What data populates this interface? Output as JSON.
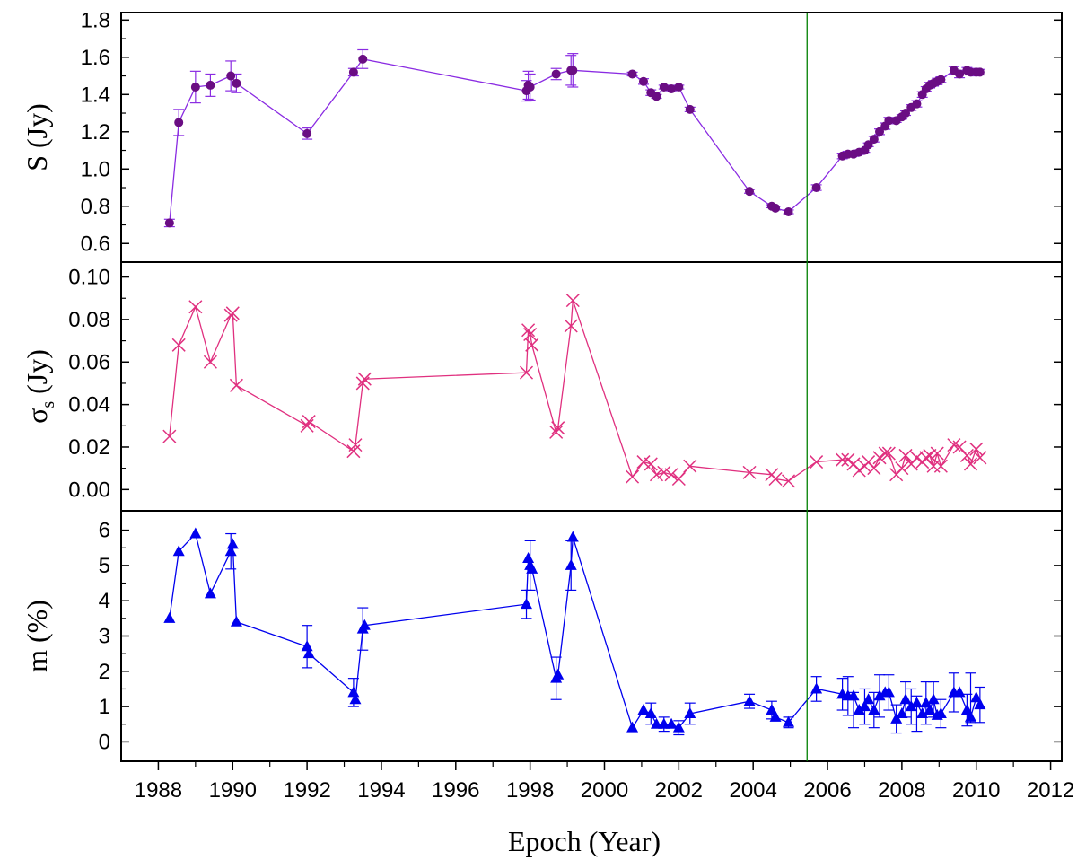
{
  "chart_data": {
    "type": "scatter",
    "x_range": [
      1987.0,
      2012.3
    ],
    "x_ticks": [
      1988,
      1990,
      1992,
      1994,
      1996,
      1998,
      2000,
      2002,
      2004,
      2006,
      2008,
      2010,
      2012
    ],
    "xlabel": "Epoch (Year)",
    "vertical_marker": {
      "x": 2005.45,
      "color": "#008000"
    },
    "panels": [
      {
        "name": "S",
        "ylabel": "S (Jy)",
        "ylim": [
          0.5,
          1.84
        ],
        "y_ticks": [
          "0.6",
          "0.8",
          "1.0",
          "1.2",
          "1.4",
          "1.6",
          "1.8"
        ],
        "marker": "circle",
        "marker_color": "#6a0d83",
        "line_color": "#8a2be2",
        "x": [
          1988.3,
          1988.55,
          1989.0,
          1989.4,
          1989.95,
          1990.1,
          1992.0,
          1993.25,
          1993.5,
          1997.9,
          1997.95,
          1998.0,
          1998.7,
          1999.1,
          1999.15,
          2000.75,
          2001.05,
          2001.25,
          2001.4,
          2001.6,
          2001.8,
          2002.0,
          2002.3,
          2003.9,
          2004.5,
          2004.6,
          2004.95,
          2005.7,
          2006.4,
          2006.55,
          2006.7,
          2006.85,
          2007.0,
          2007.1,
          2007.25,
          2007.4,
          2007.55,
          2007.65,
          2007.85,
          2008.0,
          2008.1,
          2008.25,
          2008.4,
          2008.55,
          2008.65,
          2008.75,
          2008.85,
          2008.95,
          2009.05,
          2009.4,
          2009.55,
          2009.75,
          2009.85,
          2010.0,
          2010.1
        ],
        "y": [
          0.71,
          1.25,
          1.44,
          1.45,
          1.5,
          1.46,
          1.19,
          1.52,
          1.59,
          1.42,
          1.45,
          1.44,
          1.51,
          1.53,
          1.53,
          1.51,
          1.47,
          1.41,
          1.39,
          1.44,
          1.43,
          1.44,
          1.32,
          0.88,
          0.8,
          0.79,
          0.77,
          0.9,
          1.07,
          1.08,
          1.08,
          1.09,
          1.1,
          1.13,
          1.16,
          1.2,
          1.23,
          1.26,
          1.26,
          1.28,
          1.3,
          1.33,
          1.35,
          1.4,
          1.43,
          1.45,
          1.46,
          1.47,
          1.48,
          1.53,
          1.51,
          1.53,
          1.52,
          1.52,
          1.52
        ],
        "err": [
          0.02,
          0.07,
          0.085,
          0.06,
          0.08,
          0.05,
          0.03,
          0.02,
          0.05,
          0.055,
          0.075,
          0.07,
          0.03,
          0.08,
          0.09,
          0.01,
          0.015,
          0.015,
          0.01,
          0.01,
          0.01,
          0.01,
          0.012,
          0.01,
          0.008,
          0.01,
          0.01,
          0.015,
          0.015,
          0.015,
          0.012,
          0.012,
          0.01,
          0.01,
          0.015,
          0.015,
          0.017,
          0.017,
          0.01,
          0.012,
          0.012,
          0.015,
          0.017,
          0.015,
          0.012,
          0.015,
          0.015,
          0.017,
          0.015,
          0.02,
          0.02,
          0.015,
          0.015,
          0.02,
          0.015
        ]
      },
      {
        "name": "sigma",
        "ylabel": "σs (Jy)",
        "ylabel_main": "σ",
        "ylabel_sub": "s",
        "ylabel_rest": " (Jy)",
        "ylim": [
          -0.01,
          0.107
        ],
        "y_ticks": [
          "0.00",
          "0.02",
          "0.04",
          "0.06",
          "0.08",
          "0.10"
        ],
        "marker": "x",
        "marker_color": "#e0307f",
        "line_color": "#e0307f",
        "x": [
          1988.3,
          1988.55,
          1989.0,
          1989.4,
          1989.95,
          1990.0,
          1990.1,
          1992.0,
          1992.05,
          1993.25,
          1993.3,
          1993.5,
          1993.55,
          1997.9,
          1997.95,
          1998.0,
          1998.05,
          1998.7,
          1998.75,
          1999.1,
          1999.15,
          2000.75,
          2001.05,
          2001.25,
          2001.4,
          2001.6,
          2001.8,
          2002.0,
          2002.3,
          2003.9,
          2004.5,
          2004.6,
          2004.95,
          2005.7,
          2006.4,
          2006.55,
          2006.7,
          2006.85,
          2007.0,
          2007.1,
          2007.25,
          2007.4,
          2007.55,
          2007.65,
          2007.85,
          2008.0,
          2008.1,
          2008.25,
          2008.4,
          2008.55,
          2008.65,
          2008.75,
          2008.85,
          2008.95,
          2009.05,
          2009.4,
          2009.55,
          2009.75,
          2009.85,
          2010.0,
          2010.1
        ],
        "y": [
          0.025,
          0.068,
          0.086,
          0.06,
          0.082,
          0.083,
          0.049,
          0.03,
          0.032,
          0.018,
          0.021,
          0.05,
          0.052,
          0.055,
          0.075,
          0.073,
          0.068,
          0.027,
          0.029,
          0.077,
          0.089,
          0.006,
          0.013,
          0.012,
          0.007,
          0.008,
          0.007,
          0.005,
          0.011,
          0.008,
          0.007,
          0.005,
          0.004,
          0.013,
          0.014,
          0.014,
          0.012,
          0.009,
          0.011,
          0.013,
          0.01,
          0.015,
          0.017,
          0.017,
          0.007,
          0.01,
          0.016,
          0.012,
          0.015,
          0.013,
          0.015,
          0.016,
          0.011,
          0.017,
          0.011,
          0.021,
          0.02,
          0.016,
          0.012,
          0.019,
          0.015
        ]
      },
      {
        "name": "m",
        "ylabel": "m (%)",
        "ylim": [
          -0.55,
          6.55
        ],
        "y_ticks": [
          "0",
          "1",
          "2",
          "3",
          "4",
          "5",
          "6"
        ],
        "marker": "triangle",
        "marker_color": "#0000ee",
        "line_color": "#0000ee",
        "x": [
          1988.3,
          1988.55,
          1989.0,
          1989.4,
          1989.95,
          1990.0,
          1990.1,
          1992.0,
          1992.05,
          1993.25,
          1993.3,
          1993.5,
          1993.55,
          1997.9,
          1997.95,
          1998.0,
          1998.05,
          1998.7,
          1998.75,
          1999.1,
          1999.15,
          2000.75,
          2001.05,
          2001.25,
          2001.4,
          2001.6,
          2001.8,
          2002.0,
          2002.3,
          2003.9,
          2004.5,
          2004.6,
          2004.95,
          2005.7,
          2006.4,
          2006.55,
          2006.7,
          2006.85,
          2007.0,
          2007.1,
          2007.25,
          2007.4,
          2007.55,
          2007.65,
          2007.85,
          2008.0,
          2008.1,
          2008.25,
          2008.4,
          2008.55,
          2008.65,
          2008.75,
          2008.85,
          2008.95,
          2009.05,
          2009.4,
          2009.55,
          2009.75,
          2009.85,
          2010.0,
          2010.1
        ],
        "y": [
          3.5,
          5.4,
          5.9,
          4.2,
          5.4,
          5.6,
          3.4,
          2.7,
          2.5,
          1.4,
          1.2,
          3.2,
          3.3,
          3.9,
          5.2,
          5.0,
          4.9,
          1.8,
          1.9,
          5.0,
          5.8,
          0.4,
          0.9,
          0.8,
          0.5,
          0.5,
          0.5,
          0.4,
          0.8,
          1.15,
          0.9,
          0.7,
          0.55,
          1.5,
          1.35,
          1.3,
          1.3,
          0.9,
          1.0,
          1.2,
          0.9,
          1.3,
          1.4,
          1.4,
          0.65,
          0.8,
          1.2,
          1.0,
          1.1,
          0.8,
          1.1,
          0.9,
          1.2,
          0.75,
          0.8,
          1.4,
          1.4,
          0.9,
          0.7,
          1.25,
          1.05
        ]
      }
    ],
    "m_errorbars": [
      {
        "x": 1989.95,
        "y": 5.4,
        "err": 0.5
      },
      {
        "x": 1992.0,
        "y": 2.7,
        "err": 0.6
      },
      {
        "x": 1993.25,
        "y": 1.4,
        "err": 0.4
      },
      {
        "x": 1993.5,
        "y": 3.2,
        "err": 0.6
      },
      {
        "x": 1997.9,
        "y": 3.9,
        "err": 0.4
      },
      {
        "x": 1998.0,
        "y": 5.0,
        "err": 0.7
      },
      {
        "x": 1998.7,
        "y": 1.8,
        "err": 0.6
      },
      {
        "x": 1999.1,
        "y": 5.0,
        "err": 0.7
      },
      {
        "x": 2001.25,
        "y": 0.8,
        "err": 0.3
      },
      {
        "x": 2001.6,
        "y": 0.5,
        "err": 0.2
      },
      {
        "x": 2002.0,
        "y": 0.4,
        "err": 0.2
      },
      {
        "x": 2002.3,
        "y": 0.8,
        "err": 0.3
      },
      {
        "x": 2003.9,
        "y": 1.15,
        "err": 0.2
      },
      {
        "x": 2004.5,
        "y": 0.9,
        "err": 0.25
      },
      {
        "x": 2004.95,
        "y": 0.55,
        "err": 0.15
      },
      {
        "x": 2005.7,
        "y": 1.5,
        "err": 0.35
      },
      {
        "x": 2006.4,
        "y": 1.35,
        "err": 0.45
      },
      {
        "x": 2006.55,
        "y": 1.3,
        "err": 0.55
      },
      {
        "x": 2006.7,
        "y": 0.9,
        "err": 0.5
      },
      {
        "x": 2007.0,
        "y": 1.0,
        "err": 0.5
      },
      {
        "x": 2007.25,
        "y": 0.9,
        "err": 0.5
      },
      {
        "x": 2007.4,
        "y": 1.3,
        "err": 0.6
      },
      {
        "x": 2007.65,
        "y": 1.4,
        "err": 0.5
      },
      {
        "x": 2007.85,
        "y": 0.65,
        "err": 0.4
      },
      {
        "x": 2008.1,
        "y": 1.2,
        "err": 0.5
      },
      {
        "x": 2008.25,
        "y": 1.0,
        "err": 0.5
      },
      {
        "x": 2008.4,
        "y": 0.8,
        "err": 0.5
      },
      {
        "x": 2008.65,
        "y": 1.1,
        "err": 0.6
      },
      {
        "x": 2008.85,
        "y": 1.2,
        "err": 0.5
      },
      {
        "x": 2009.05,
        "y": 0.8,
        "err": 0.4
      },
      {
        "x": 2009.4,
        "y": 1.4,
        "err": 0.55
      },
      {
        "x": 2009.75,
        "y": 0.9,
        "err": 0.45
      },
      {
        "x": 2009.85,
        "y": 1.25,
        "err": 0.7
      },
      {
        "x": 2010.1,
        "y": 1.05,
        "err": 0.5
      }
    ]
  }
}
